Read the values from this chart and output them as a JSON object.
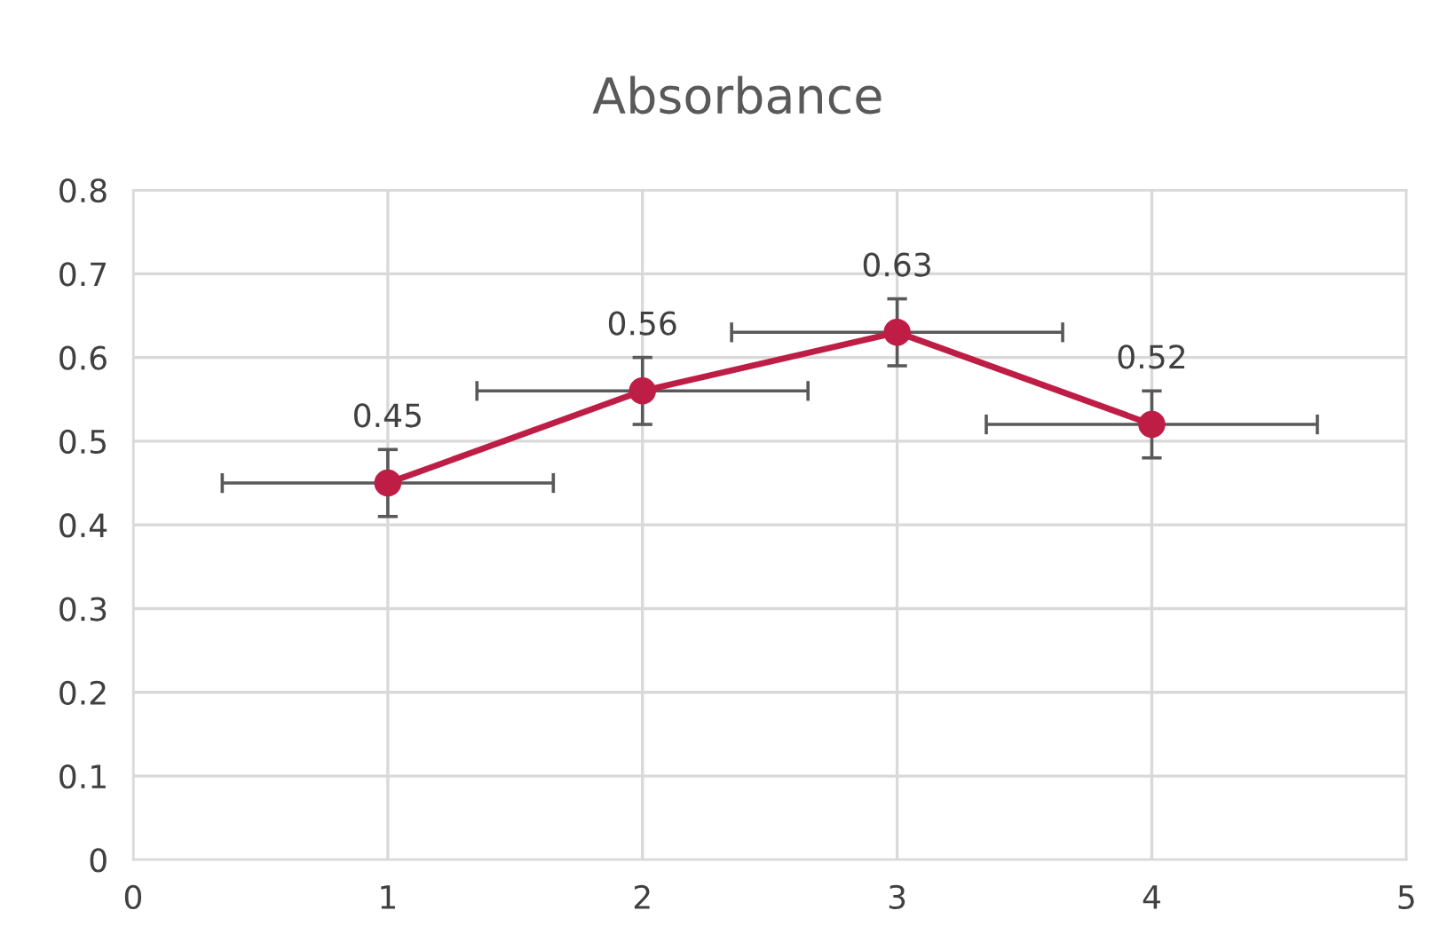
{
  "chart_data": {
    "type": "line",
    "title": "Absorbance",
    "x": [
      1,
      2,
      3,
      4
    ],
    "series": [
      {
        "color": "#be1e45",
        "values": [
          0.45,
          0.56,
          0.63,
          0.52
        ],
        "errors": [
          0.04,
          0.04,
          0.04,
          0.04
        ],
        "xerrors": [
          0.65,
          0.65,
          0.65,
          0.65
        ]
      }
    ],
    "xlim": [
      0,
      5
    ],
    "xticks": [
      0,
      1,
      2,
      3,
      4,
      5
    ],
    "ylim": [
      0,
      0.8
    ],
    "yticks": [
      0,
      0.1,
      0.2,
      0.3,
      0.4,
      0.5,
      0.6,
      0.7,
      0.8
    ],
    "grid": true,
    "marker": "circle",
    "line_style": "solid",
    "data_labels": true
  }
}
